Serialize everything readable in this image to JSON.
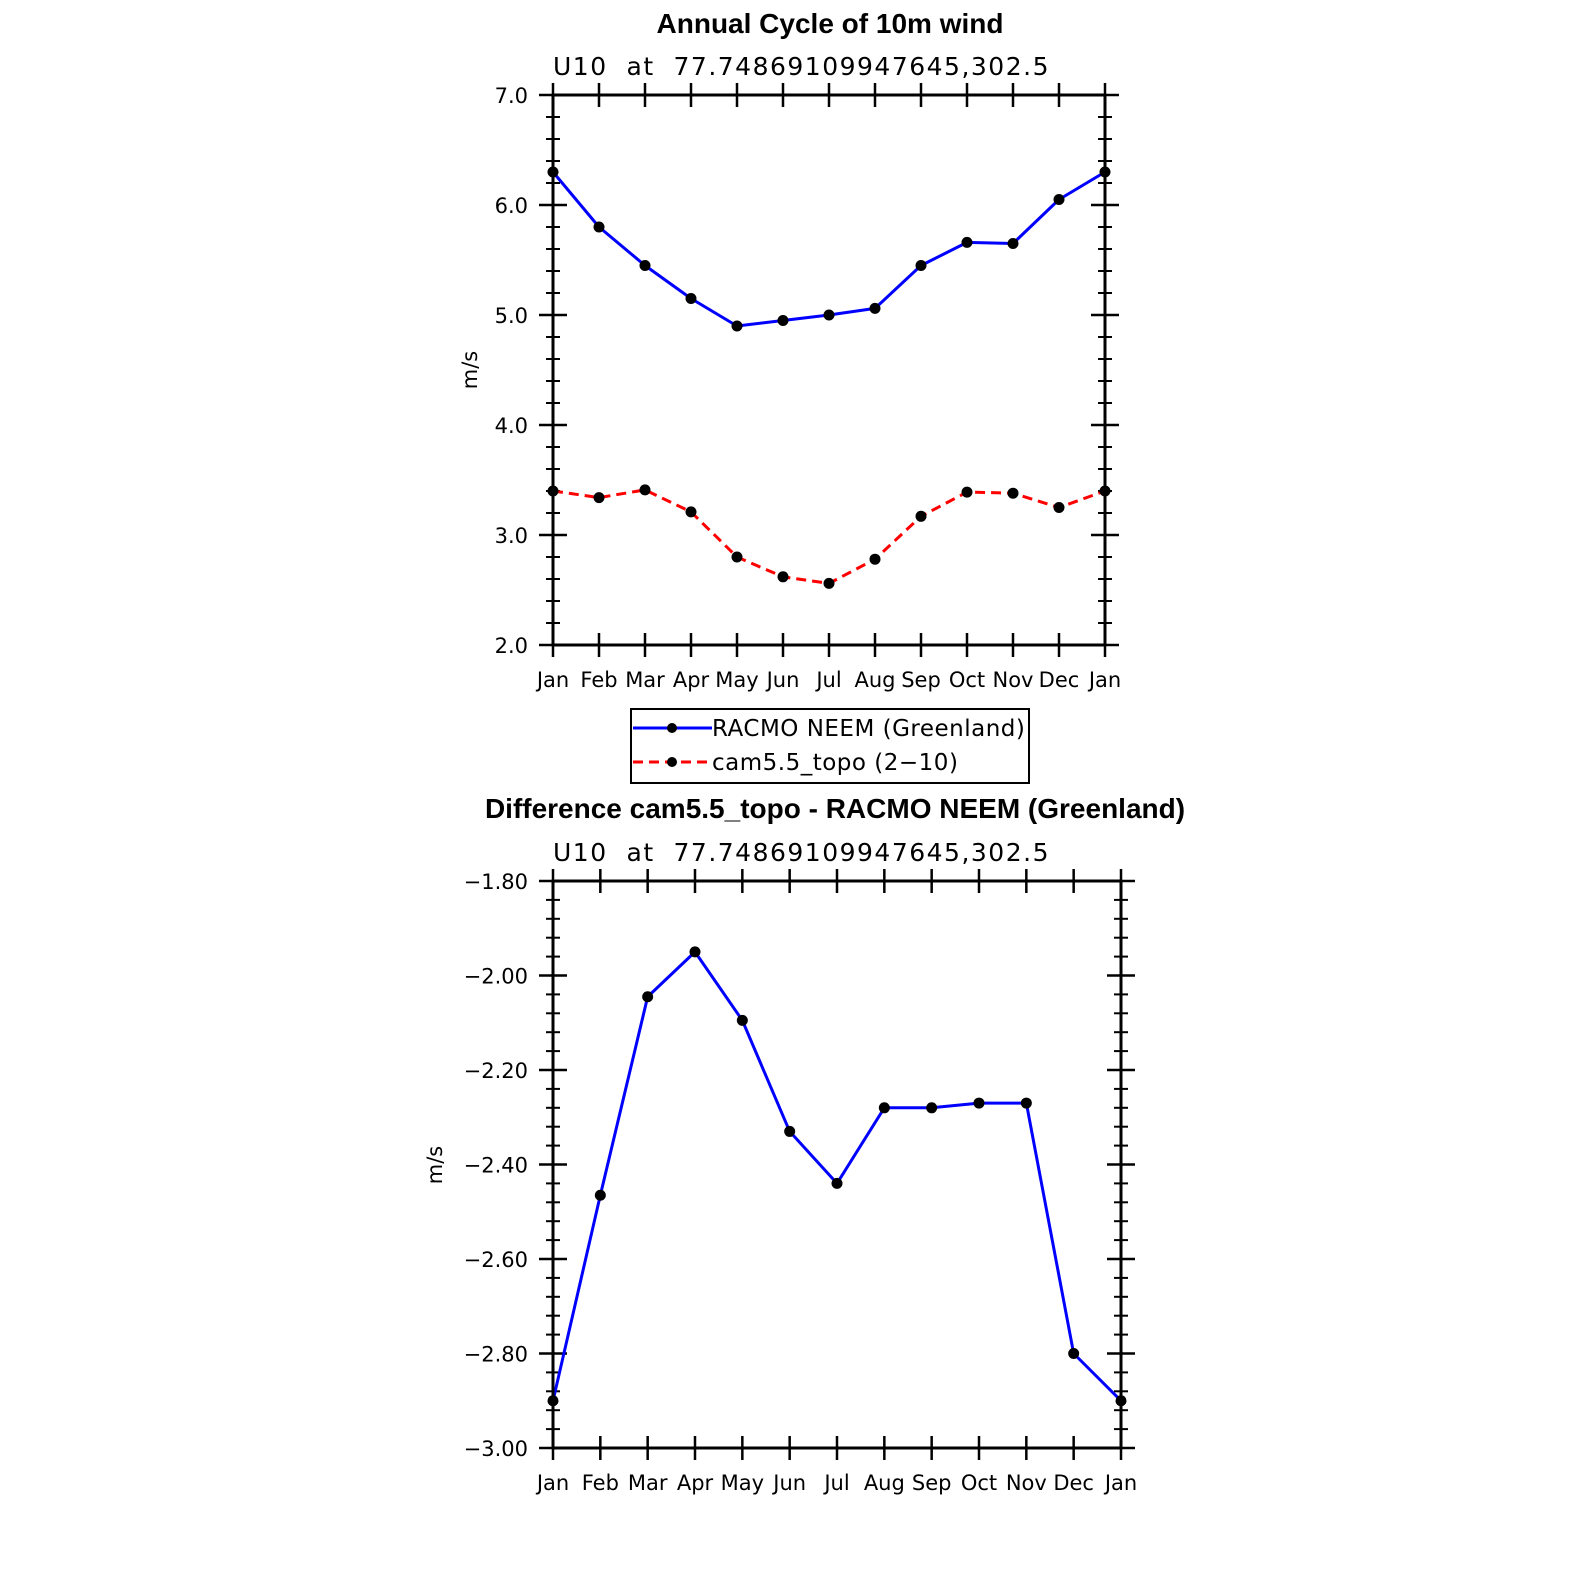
{
  "chart_data": [
    {
      "type": "line",
      "title": "Annual Cycle of 10m wind",
      "subtitle": "U10  at  77.74869109947645,302.5",
      "ylabel": "m/s",
      "xlabel": "",
      "categories": [
        "Jan",
        "Feb",
        "Mar",
        "Apr",
        "May",
        "Jun",
        "Jul",
        "Aug",
        "Sep",
        "Oct",
        "Nov",
        "Dec",
        "Jan"
      ],
      "ylim": [
        2.0,
        7.0
      ],
      "yticks": [
        2.0,
        3.0,
        4.0,
        5.0,
        6.0,
        7.0
      ],
      "ytick_labels": [
        "2.0",
        "3.0",
        "4.0",
        "5.0",
        "6.0",
        "7.0"
      ],
      "grid": false,
      "legend_position": "bottom",
      "series": [
        {
          "name": "RACMO NEEM (Greenland)",
          "color": "#0000ff",
          "dash": "solid",
          "values": [
            6.3,
            5.8,
            5.45,
            5.15,
            4.9,
            4.95,
            5.0,
            5.06,
            5.45,
            5.66,
            5.65,
            6.05,
            6.3
          ]
        },
        {
          "name": "cam5.5_topo (2−10)",
          "color": "#ff0000",
          "dash": "dashed",
          "values": [
            3.4,
            3.34,
            3.41,
            3.21,
            2.8,
            2.62,
            2.56,
            2.78,
            3.17,
            3.39,
            3.38,
            3.25,
            3.4
          ]
        }
      ]
    },
    {
      "type": "line",
      "title": "Difference cam5.5_topo - RACMO NEEM (Greenland)",
      "subtitle": "U10  at  77.74869109947645,302.5",
      "ylabel": "m/s",
      "xlabel": "",
      "categories": [
        "Jan",
        "Feb",
        "Mar",
        "Apr",
        "May",
        "Jun",
        "Jul",
        "Aug",
        "Sep",
        "Oct",
        "Nov",
        "Dec",
        "Jan"
      ],
      "ylim": [
        -3.0,
        -1.8
      ],
      "yticks": [
        -3.0,
        -2.8,
        -2.6,
        -2.4,
        -2.2,
        -2.0,
        -1.8
      ],
      "ytick_labels": [
        "−3.00",
        "−2.80",
        "−2.60",
        "−2.40",
        "−2.20",
        "−2.00",
        "−1.80"
      ],
      "grid": false,
      "series": [
        {
          "color": "#0000ff",
          "dash": "solid",
          "values": [
            -2.9,
            -2.465,
            -2.045,
            -1.95,
            -2.095,
            -2.33,
            -2.44,
            -2.28,
            -2.28,
            -2.27,
            -2.27,
            -2.8,
            -2.9
          ]
        }
      ]
    }
  ]
}
